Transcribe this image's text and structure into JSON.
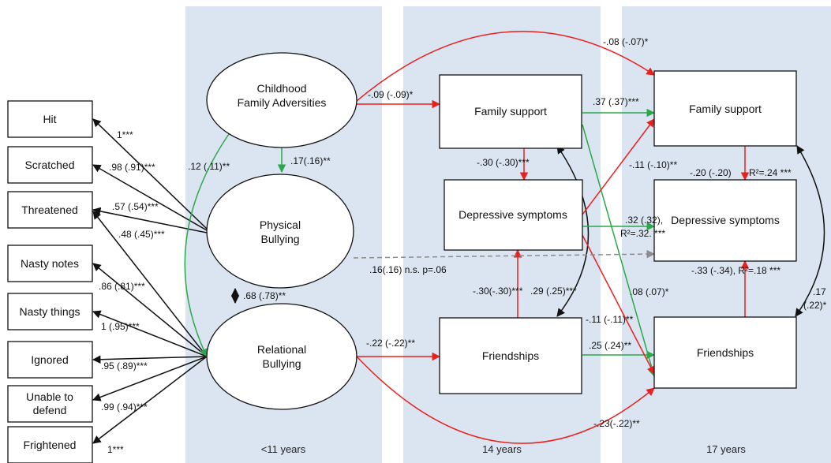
{
  "colors": {
    "band": "#dbe5f1",
    "negative": "#e8211f",
    "positive": "#2ba84a",
    "neutral": "#111111",
    "nonsig": "#8c8c8c"
  },
  "bands": {
    "b1": "<11 years",
    "b2": "14 years",
    "b3": "17 years"
  },
  "indicators": {
    "hit": "Hit",
    "scratched": "Scratched",
    "threatened": "Threatened",
    "nasty_notes": "Nasty notes",
    "nasty_things": "Nasty things",
    "ignored": "Ignored",
    "unable_l1": "Unable to",
    "unable_l2": "defend",
    "frightened": "Frightened"
  },
  "latents": {
    "cfa_l1": "Childhood",
    "cfa_l2": "Family Adversities",
    "pb_l1": "Physical",
    "pb_l2": "Bullying",
    "rb_l1": "Relational",
    "rb_l2": "Bullying"
  },
  "boxes": {
    "fs14": "Family support",
    "dep14": "Depressive symptoms",
    "fr14": "Friendships",
    "fs17": "Family support",
    "dep17": "Depressive symptoms",
    "fr17": "Friendships"
  },
  "labels": {
    "hit": "1***",
    "scratched": ".98 (.91)***",
    "threatened": ".57 (.54)***",
    "threatened_rb": ".48 (.45)***",
    "nasty_notes": ".86 (.81)***",
    "nasty_things": "1 (.95)***",
    "ignored": ".95 (.89)***",
    "unable": ".99 (.94)***",
    "frightened": "1***",
    "cfa_rb": ".12 (.11)**",
    "cfa_pb": ".17(.16)**",
    "pb_rb": ".68 (.78)**",
    "cfa_fs14": "-.09 (-.09)*",
    "cfa_fs17": "-.08 (-.07)*",
    "pb_dep17": ".16(.16) n.s. p=.06",
    "rb_fr14": "-.22 (-.22)**",
    "rb_fr17": "-.23(-.22)**",
    "fs14_fs17": ".37 (.37)***",
    "fs14_dep14": "-.30 (-.30)***",
    "fs14_dep17": "-.11 (-.10)**",
    "dep14_dep17_a": ".32 (.32),",
    "dep14_dep17_b": "R²=.32. ***",
    "fs17_dep17": "-.20 (-.20)",
    "dep17_r2": "R²=.24 ***",
    "fr14_dep14": "-.30(-.30)***",
    "fs14_fr14_cov": ".29 (.25)***",
    "fs14_fr17": ".08 (.07)*",
    "dep14_fr17": "-.11 (-.11)**",
    "fr14_fr17": ".25 (.24)**",
    "fr17_dep17": "-.33 (-.34), R²=.18 ***",
    "fs17_fr17_a": ".17",
    "fs17_fr17_b": "(.22)*"
  }
}
